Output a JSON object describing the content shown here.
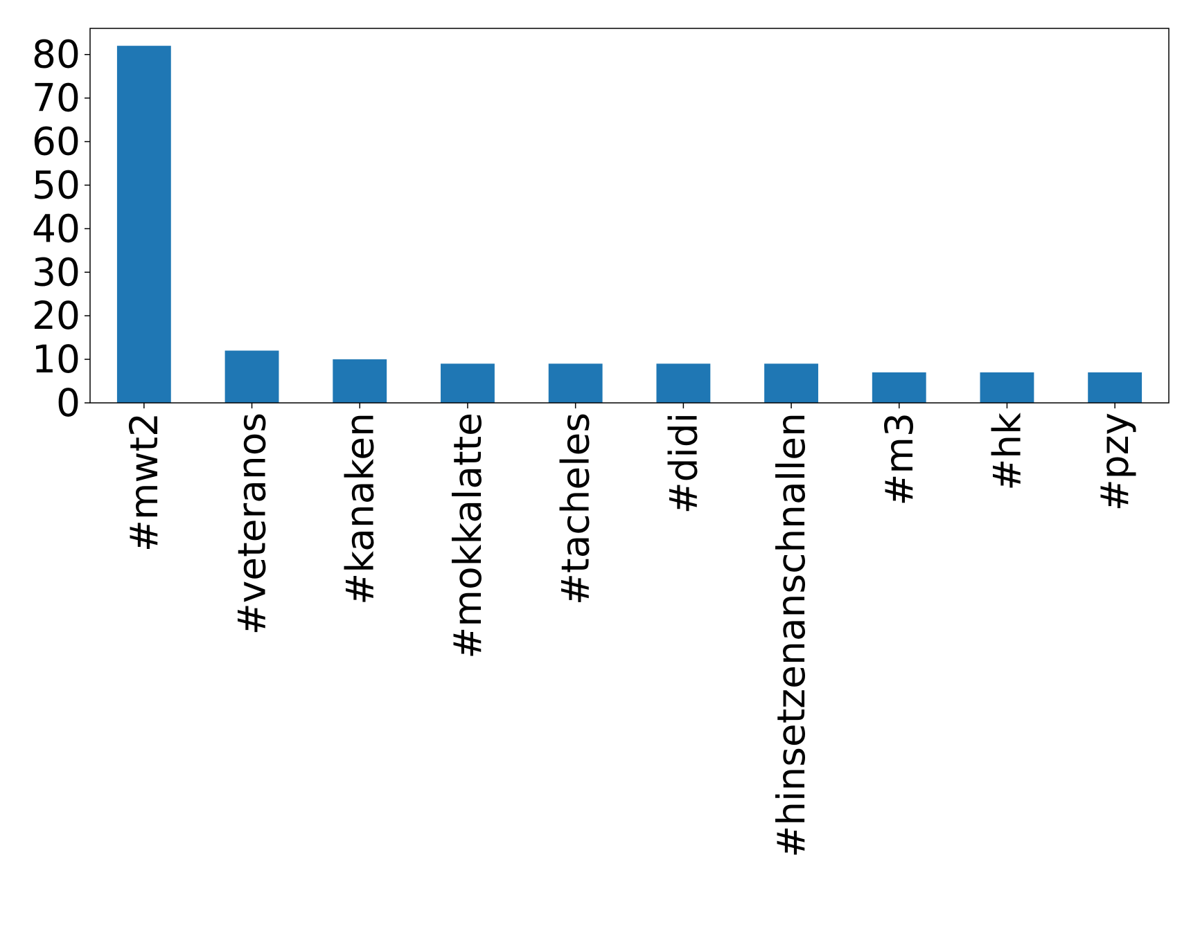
{
  "chart_data": {
    "type": "bar",
    "categories": [
      "#mwt2",
      "#veteranos",
      "#kanaken",
      "#mokkalatte",
      "#tacheles",
      "#didi",
      "#hinsetzenanschnallen",
      "#m3",
      "#hk",
      "#pzy"
    ],
    "values": [
      82,
      12,
      10,
      9,
      9,
      9,
      9,
      7,
      7,
      7
    ],
    "color": "#1f77b4",
    "ylim": [
      0,
      86
    ],
    "yticks": [
      0,
      10,
      20,
      30,
      40,
      50,
      60,
      70,
      80
    ],
    "grid": false
  }
}
